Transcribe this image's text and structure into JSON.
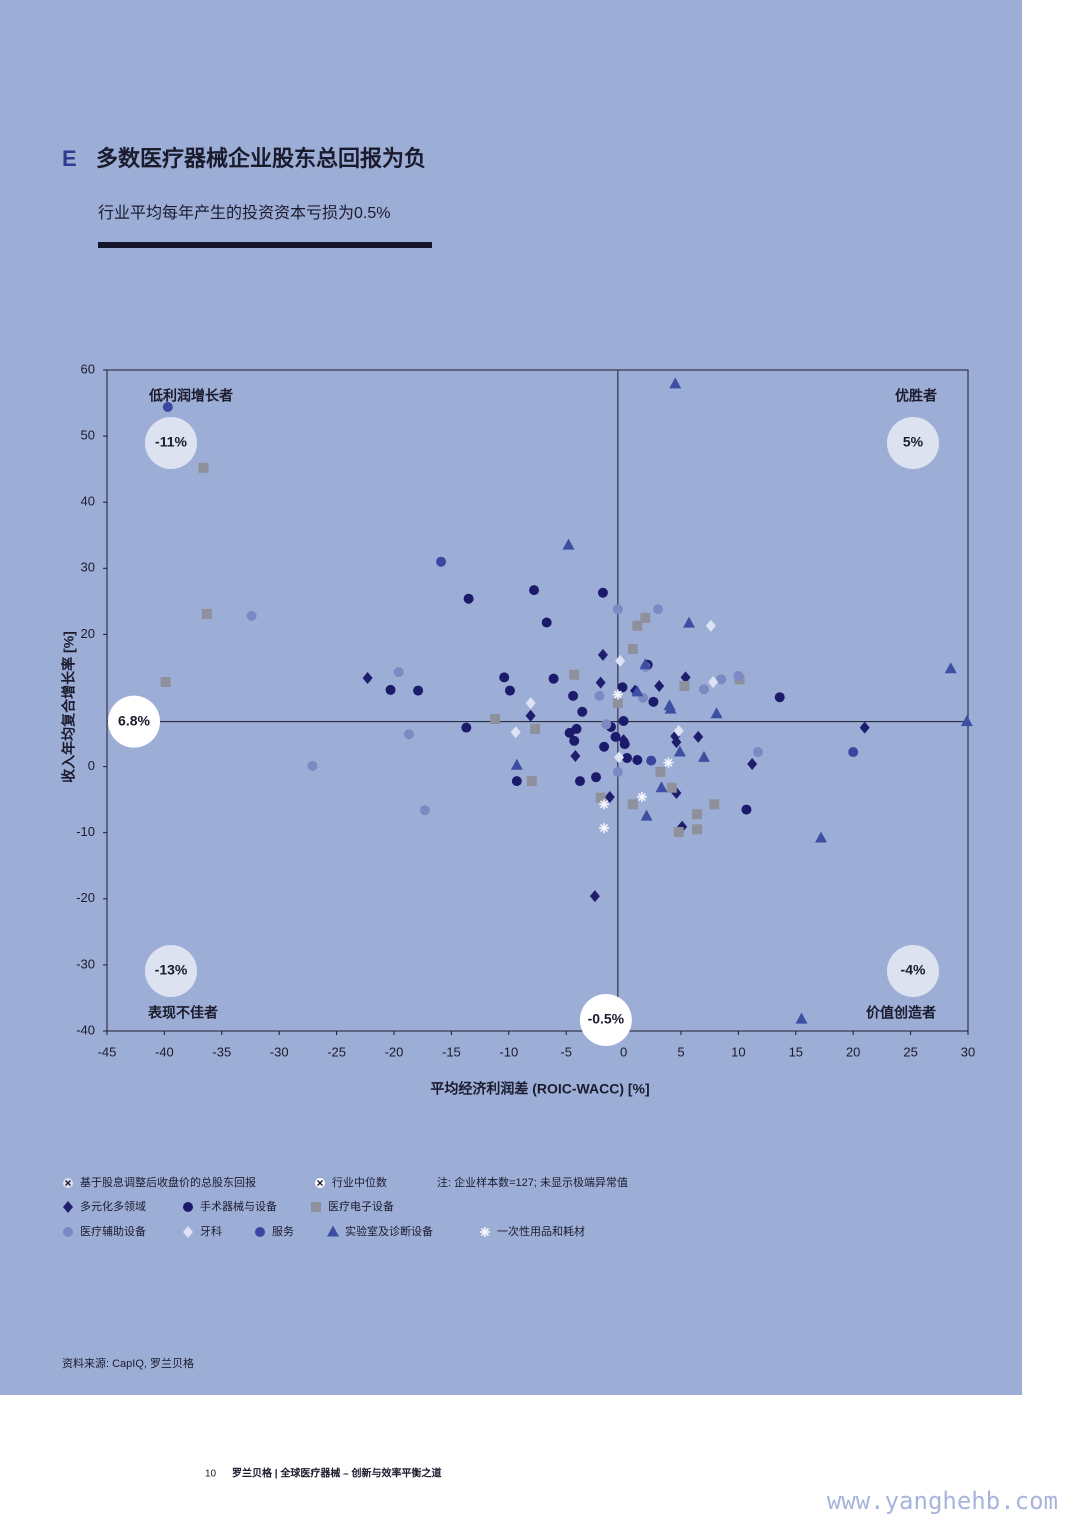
{
  "header": {
    "letter": "E",
    "title": "多数医疗器械企业股东总回报为负",
    "subtitle": "行业平均每年产生的投资资本亏损为0.5%"
  },
  "chart_data": {
    "type": "scatter",
    "x_label": "平均经济利润差 (ROIC-WACC) [%]",
    "y_label": "收入年均复合增长率 [%]",
    "xlim": [
      -45,
      30
    ],
    "xticks": [
      -45,
      -40,
      -35,
      -30,
      -25,
      -20,
      -15,
      -10,
      -5,
      0,
      5,
      10,
      15,
      20,
      25,
      30
    ],
    "ylim": [
      -40,
      60
    ],
    "yticks": [
      -40,
      -30,
      -20,
      -10,
      0,
      20,
      30,
      40,
      50,
      60
    ],
    "x_median": {
      "value": -0.5,
      "label": "-0.5%"
    },
    "y_median": {
      "value": 6.8,
      "label": "6.8%"
    },
    "quadrants": [
      {
        "name": "低利润增长者",
        "label": "-11%"
      },
      {
        "name": "优胜者",
        "label": "5%"
      },
      {
        "name": "表现不佳者",
        "label": "-13%"
      },
      {
        "name": "价值创造者",
        "label": "-4%"
      }
    ],
    "tsr_legend": "基于股息调整后收盘价的总股东回报",
    "median_legend": "行业中位数",
    "note": "注: 企业样本数=127; 未显示极端异常值",
    "series": [
      {
        "name": "多元化多领域",
        "color": "#1f1d6e",
        "marker": "diamond",
        "x": [
          -22.3,
          -1.8,
          -2.0,
          -8.1,
          -4.2,
          -1.2,
          -2.5,
          3.1,
          5.4,
          4.5,
          4.6,
          6.5,
          4.6,
          5.1,
          11.2,
          21.0,
          0,
          1.0
        ],
        "values": [
          13.4,
          16.9,
          12.7,
          7.7,
          1.6,
          -4.6,
          -19.6,
          12.2,
          13.5,
          4.6,
          3.7,
          4.5,
          -4.0,
          -9.1,
          0.4,
          5.9,
          4.0,
          11.5
        ]
      },
      {
        "name": "手术器械与设备",
        "color": "#1c1a6b",
        "marker": "circle",
        "x": [
          -20.3,
          -17.9,
          -13.7,
          -13.5,
          -10.4,
          -9.9,
          -7.8,
          -6.7,
          -6.1,
          -9.3,
          -4.4,
          -3.6,
          -4.1,
          -4.3,
          -4.7,
          -3.8,
          -1.8,
          -1.7,
          -1.1,
          -0.7,
          -0.1,
          0,
          0.1,
          0.3,
          1.2,
          2.6,
          2.1,
          13.6,
          10.7,
          -2.4
        ],
        "values": [
          11.6,
          11.5,
          5.9,
          25.4,
          13.5,
          11.5,
          26.7,
          21.8,
          13.3,
          -2.2,
          10.7,
          8.3,
          5.7,
          3.9,
          5.1,
          -2.2,
          26.3,
          3.0,
          6.0,
          4.5,
          12.0,
          6.9,
          3.4,
          1.3,
          1.0,
          9.8,
          15.4,
          10.5,
          -6.5,
          -1.6
        ]
      },
      {
        "name": "医疗电子设备",
        "color": "#8e909c",
        "marker": "square",
        "x": [
          -36.6,
          -36.3,
          -39.9,
          -11.2,
          -7.7,
          -8.0,
          -4.3,
          -2.0,
          -0.5,
          0.8,
          1.2,
          1.9,
          0.8,
          3.2,
          4.2,
          5.3,
          6.4,
          6.4,
          4.8,
          7.9,
          10.1
        ],
        "values": [
          45.2,
          23.1,
          12.8,
          7.2,
          5.7,
          -2.2,
          13.9,
          -4.7,
          9.6,
          17.8,
          21.3,
          22.5,
          -5.7,
          -0.8,
          -3.2,
          12.2,
          -7.2,
          -9.5,
          -9.9,
          -5.7,
          13.2
        ]
      },
      {
        "name": "医疗辅助设备",
        "color": "#7c89c2",
        "marker": "circle",
        "x": [
          -32.4,
          -27.1,
          -19.6,
          -18.7,
          -17.3,
          -2.1,
          -0.5,
          3.0,
          1.7,
          -1.5,
          1.9,
          7.0,
          8.5,
          10.0,
          11.7,
          -0.5
        ],
        "values": [
          22.8,
          0.1,
          14.3,
          4.9,
          -6.6,
          10.7,
          23.8,
          23.8,
          10.4,
          6.4,
          15.1,
          11.7,
          13.2,
          13.7,
          2.2,
          -0.8
        ]
      },
      {
        "name": "牙科",
        "color": "#dde3f3",
        "marker": "diamond",
        "x": [
          -8.1,
          -9.4,
          -0.3,
          7.6,
          7.8,
          4.8,
          -0.4
        ],
        "values": [
          9.6,
          5.2,
          16.0,
          21.3,
          12.8,
          5.4,
          1.4
        ]
      },
      {
        "name": "服务",
        "color": "#3a47a0",
        "marker": "circle",
        "x": [
          -39.7,
          20.0,
          2.4,
          -15.9
        ],
        "values": [
          54.4,
          2.2,
          0.9,
          31.0
        ]
      },
      {
        "name": "实验室及诊断设备",
        "color": "#3d4fa3",
        "marker": "triangle",
        "x": [
          4.5,
          -4.8,
          -9.3,
          1.2,
          1.9,
          4.0,
          4.1,
          5.7,
          8.1,
          7.0,
          4.9,
          3.3,
          2.0,
          28.5,
          29.9,
          17.2,
          15.5
        ],
        "values": [
          57.9,
          33.5,
          0.2,
          11.3,
          15.4,
          9.2,
          8.7,
          21.7,
          8.0,
          1.4,
          2.2,
          -3.2,
          -7.5,
          14.8,
          6.8,
          -10.8,
          -38.2
        ]
      },
      {
        "name": "一次性用品和耗材",
        "color": "#f4f5fb",
        "marker": "asterisk",
        "x": [
          -0.5,
          -1.7,
          -1.7,
          1.6,
          3.9
        ],
        "values": [
          10.9,
          -5.7,
          -9.3,
          -4.6,
          0.6
        ]
      }
    ]
  },
  "source": "资料来源: CapIQ, 罗兰贝格",
  "footer": {
    "page": "10",
    "text": "罗兰贝格 | 全球医疗器械 – 创新与效率平衡之道"
  },
  "watermark": "www.yanghehb.com"
}
